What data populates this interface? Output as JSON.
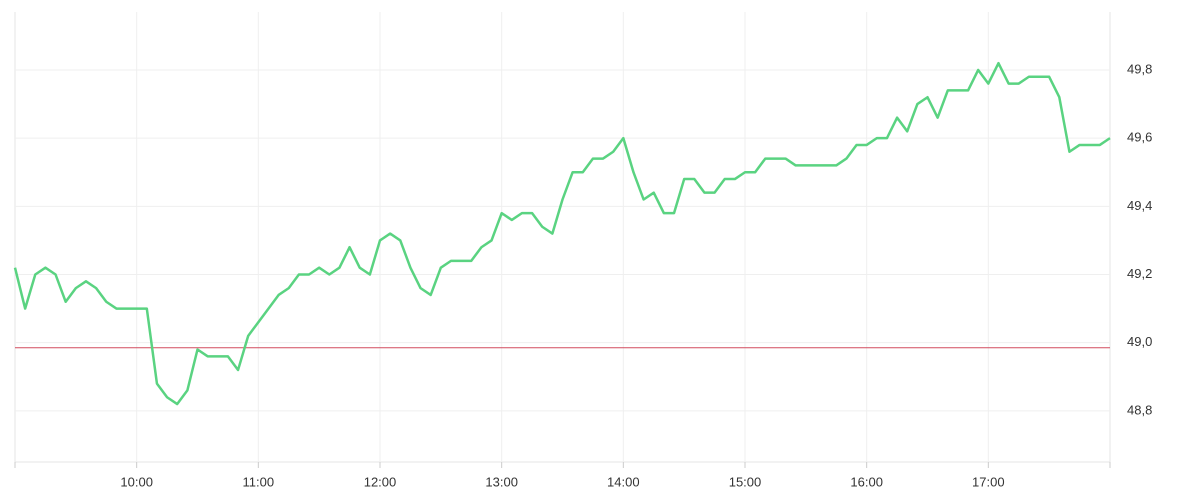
{
  "chart_data": {
    "type": "line",
    "x": [
      "09:00",
      "09:05",
      "09:10",
      "09:15",
      "09:20",
      "09:25",
      "09:30",
      "09:35",
      "09:40",
      "09:45",
      "09:50",
      "09:55",
      "10:00",
      "10:05",
      "10:10",
      "10:15",
      "10:20",
      "10:25",
      "10:30",
      "10:35",
      "10:40",
      "10:45",
      "10:50",
      "10:55",
      "11:00",
      "11:05",
      "11:10",
      "11:15",
      "11:20",
      "11:25",
      "11:30",
      "11:35",
      "11:40",
      "11:45",
      "11:50",
      "11:55",
      "12:00",
      "12:05",
      "12:10",
      "12:15",
      "12:20",
      "12:25",
      "12:30",
      "12:35",
      "12:40",
      "12:45",
      "12:50",
      "12:55",
      "13:00",
      "13:05",
      "13:10",
      "13:15",
      "13:20",
      "13:25",
      "13:30",
      "13:35",
      "13:40",
      "13:45",
      "13:50",
      "13:55",
      "14:00",
      "14:05",
      "14:10",
      "14:15",
      "14:20",
      "14:25",
      "14:30",
      "14:35",
      "14:40",
      "14:45",
      "14:50",
      "14:55",
      "15:00",
      "15:05",
      "15:10",
      "15:15",
      "15:20",
      "15:25",
      "15:30",
      "15:35",
      "15:40",
      "15:45",
      "15:50",
      "15:55",
      "16:00",
      "16:05",
      "16:10",
      "16:15",
      "16:20",
      "16:25",
      "16:30",
      "16:35",
      "16:40",
      "16:45",
      "16:50",
      "16:55",
      "17:00",
      "17:05",
      "17:10",
      "17:15",
      "17:20",
      "17:25",
      "17:30",
      "17:35",
      "17:40",
      "17:45",
      "17:50",
      "17:55",
      "18:00"
    ],
    "series": [
      {
        "color": "#5ad381",
        "values": [
          49.22,
          49.1,
          49.2,
          49.22,
          49.2,
          49.12,
          49.16,
          49.18,
          49.16,
          49.12,
          49.1,
          49.1,
          49.1,
          49.1,
          48.88,
          48.84,
          48.82,
          48.86,
          48.98,
          48.96,
          48.96,
          48.96,
          48.92,
          49.02,
          49.06,
          49.1,
          49.14,
          49.16,
          49.2,
          49.2,
          49.22,
          49.2,
          49.22,
          49.28,
          49.22,
          49.2,
          49.3,
          49.32,
          49.3,
          49.22,
          49.16,
          49.14,
          49.22,
          49.24,
          49.24,
          49.24,
          49.28,
          49.3,
          49.38,
          49.36,
          49.38,
          49.38,
          49.34,
          49.32,
          49.42,
          49.5,
          49.5,
          49.54,
          49.54,
          49.56,
          49.6,
          49.5,
          49.42,
          49.44,
          49.38,
          49.38,
          49.48,
          49.48,
          49.44,
          49.44,
          49.48,
          49.48,
          49.5,
          49.5,
          49.54,
          49.54,
          49.54,
          49.52,
          49.52,
          49.52,
          49.52,
          49.52,
          49.54,
          49.58,
          49.58,
          49.6,
          49.6,
          49.66,
          49.62,
          49.7,
          49.72,
          49.66,
          49.74,
          49.74,
          49.74,
          49.8,
          49.76,
          49.82,
          49.76,
          49.76,
          49.78,
          49.78,
          49.78,
          49.72,
          49.56,
          49.58,
          49.58,
          49.58,
          49.6
        ]
      }
    ],
    "reference_line": {
      "value": 48.985,
      "color": "#d24b5e"
    },
    "xticks": [
      "10:00",
      "11:00",
      "12:00",
      "13:00",
      "14:00",
      "15:00",
      "16:00",
      "17:00"
    ],
    "ylim": [
      48.65,
      49.97
    ],
    "yticks": [
      {
        "value": 48.8,
        "label": "48,8"
      },
      {
        "value": 49.0,
        "label": "49,0"
      },
      {
        "value": 49.2,
        "label": "49,2"
      },
      {
        "value": 49.4,
        "label": "49,4"
      },
      {
        "value": 49.6,
        "label": "49,6"
      },
      {
        "value": 49.8,
        "label": "49,8"
      }
    ],
    "grid": true
  }
}
